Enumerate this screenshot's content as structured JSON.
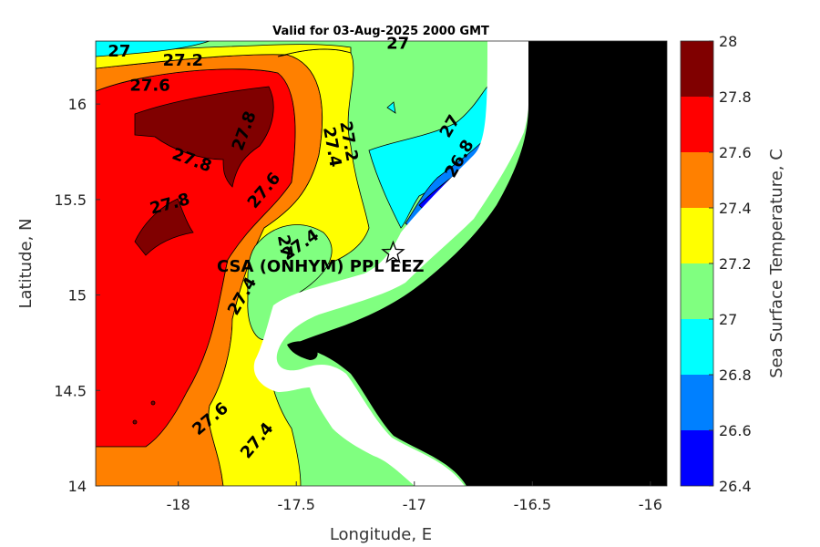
{
  "title": "Valid for 03-Aug-2025 2000 GMT",
  "xlabel": "Longitude, E",
  "ylabel": "Latitude, N",
  "colorbar_label": "Sea Surface Temperature, C",
  "x_ticks": [
    "-18",
    "-17.5",
    "-17",
    "-16.5",
    "-16"
  ],
  "y_ticks": [
    "14",
    "14.5",
    "15",
    "15.5",
    "16"
  ],
  "colorbar_ticks": [
    "26.4",
    "26.6",
    "26.8",
    "27",
    "27.2",
    "27.4",
    "27.6",
    "27.8",
    "28"
  ],
  "colorbar_colors": [
    "#0000ff",
    "#0080ff",
    "#00ffff",
    "#80ff80",
    "#ffff00",
    "#ff8000",
    "#ff0000",
    "#800000"
  ],
  "station": {
    "label": "CSA (ONHYM) PPL EEZ",
    "marker": "star-icon",
    "lon": -17.09,
    "lat": 15.22
  },
  "contour_labels": [
    {
      "text": "27",
      "lon": -18.25,
      "lat": 16.25,
      "angle": 0
    },
    {
      "text": "27.2",
      "lon": -17.98,
      "lat": 16.2,
      "angle": 0
    },
    {
      "text": "27",
      "lon": -17.07,
      "lat": 16.29,
      "angle": 0
    },
    {
      "text": "27.6",
      "lon": -18.12,
      "lat": 16.07,
      "angle": 0
    },
    {
      "text": "27.8",
      "lon": -17.7,
      "lat": 15.85,
      "angle": -70
    },
    {
      "text": "27.8",
      "lon": -17.95,
      "lat": 15.68,
      "angle": 20
    },
    {
      "text": "27.8",
      "lon": -18.03,
      "lat": 15.45,
      "angle": -15
    },
    {
      "text": "27.2",
      "lon": -17.3,
      "lat": 15.8,
      "angle": 80
    },
    {
      "text": "27.4",
      "lon": -17.37,
      "lat": 15.77,
      "angle": 80
    },
    {
      "text": "27.6",
      "lon": -17.62,
      "lat": 15.53,
      "angle": -50
    },
    {
      "text": "27",
      "lon": -16.83,
      "lat": 15.87,
      "angle": -60
    },
    {
      "text": "26.8",
      "lon": -16.79,
      "lat": 15.7,
      "angle": -60
    },
    {
      "text": "27.4",
      "lon": -17.47,
      "lat": 15.24,
      "angle": -35
    },
    {
      "text": "27",
      "lon": -17.57,
      "lat": 15.25,
      "angle": 80
    },
    {
      "text": "27.4",
      "lon": -17.71,
      "lat": 14.98,
      "angle": -60
    },
    {
      "text": "27.6",
      "lon": -17.85,
      "lat": 14.33,
      "angle": -40
    },
    {
      "text": "27.4",
      "lon": -17.65,
      "lat": 14.22,
      "angle": -50
    }
  ]
}
